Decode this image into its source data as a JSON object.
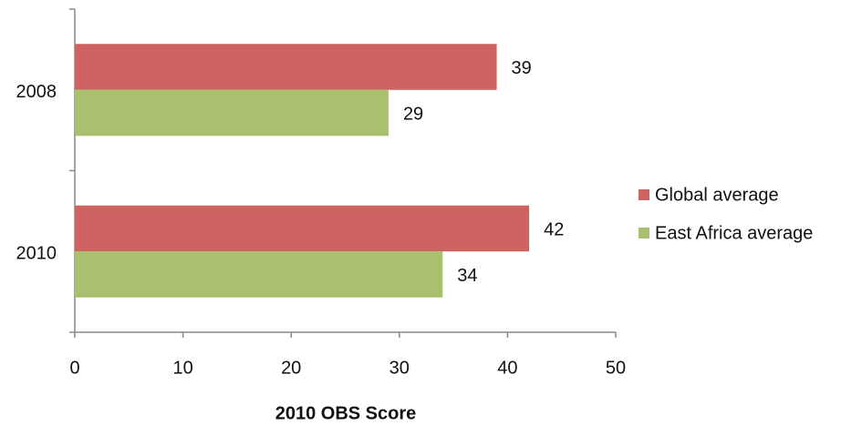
{
  "chart_data": {
    "type": "hbar",
    "x_label": "2010 OBS Score",
    "categories": [
      "2008",
      "2010"
    ],
    "series": [
      {
        "name": "Global average",
        "color": "#cd6461",
        "values": [
          39,
          42
        ]
      },
      {
        "name": "East Africa average",
        "color": "#a9c16e",
        "values": [
          29,
          34
        ]
      }
    ],
    "xlim": [
      0,
      50
    ],
    "xticks": [
      0,
      10,
      20,
      30,
      40,
      50
    ],
    "legend": "right"
  }
}
